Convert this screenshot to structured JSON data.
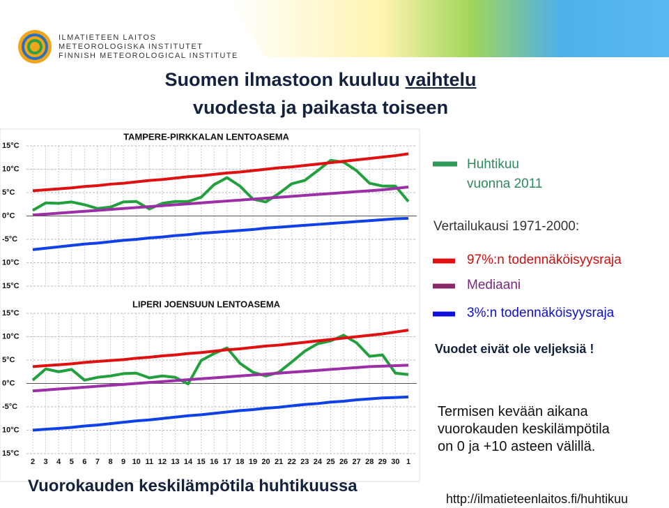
{
  "logo": {
    "lines": [
      "ILMATIETEEN LAITOS",
      "METEOROLOGISKA INSTITUTET",
      "FINNISH METEOROLOGICAL INSTITUTE"
    ]
  },
  "header": {
    "title_start": "Suomen ilmastoon kuuluu",
    "title_underlined": "vaihtelu",
    "title_line2": "vuodesta ja paikasta toiseen"
  },
  "chart_data": [
    {
      "type": "line",
      "title": "TAMPERE-PIRKKALAN LENTOASEMA",
      "ylim": [
        -15,
        15
      ],
      "yticks": [
        {
          "value": 15,
          "label": "15°C"
        },
        {
          "value": 10,
          "label": "10°C"
        },
        {
          "value": 5,
          "label": "5°C"
        },
        {
          "value": 0,
          "label": "0°C"
        },
        {
          "value": -5,
          "label": "-5°C"
        },
        {
          "value": -10,
          "label": "10°C"
        },
        {
          "value": -15,
          "label": "15°C"
        }
      ],
      "grid": true,
      "series": [
        {
          "name": "Huhtikuu vuonna 2011",
          "color": "#23a03e",
          "values": [
            1.2,
            2.8,
            2.7,
            3.0,
            2.4,
            1.6,
            1.9,
            3.0,
            3.1,
            1.5,
            2.7,
            3.1,
            3.1,
            4.0,
            6.7,
            8.2,
            6.4,
            3.6,
            3.0,
            4.8,
            6.9,
            7.6,
            9.7,
            11.9,
            11.5,
            9.7,
            7.0,
            6.4,
            6.4,
            3.1
          ]
        },
        {
          "name": "97%:n todennäköisyysraja",
          "color": "#e01010",
          "values": [
            5.4,
            5.6,
            5.8,
            6.0,
            6.3,
            6.5,
            6.8,
            7.0,
            7.3,
            7.6,
            7.8,
            8.1,
            8.4,
            8.6,
            8.9,
            9.2,
            9.4,
            9.7,
            10.0,
            10.3,
            10.5,
            10.8,
            11.1,
            11.4,
            11.7,
            12.0,
            12.3,
            12.6,
            12.9,
            13.3
          ]
        },
        {
          "name": "Mediaani",
          "color": "#9a2fa6",
          "values": [
            0.2,
            0.4,
            0.6,
            0.8,
            1.0,
            1.2,
            1.4,
            1.6,
            1.8,
            2.0,
            2.2,
            2.4,
            2.6,
            2.8,
            3.0,
            3.2,
            3.4,
            3.6,
            3.8,
            4.0,
            4.2,
            4.4,
            4.6,
            4.8,
            5.0,
            5.2,
            5.4,
            5.6,
            5.9,
            6.2
          ]
        },
        {
          "name": "3%:n todennäköisyysraja",
          "color": "#1040e8",
          "values": [
            -7.2,
            -6.9,
            -6.6,
            -6.3,
            -6.0,
            -5.8,
            -5.5,
            -5.2,
            -5.0,
            -4.7,
            -4.5,
            -4.2,
            -4.0,
            -3.7,
            -3.5,
            -3.3,
            -3.1,
            -2.9,
            -2.6,
            -2.4,
            -2.2,
            -2.0,
            -1.8,
            -1.6,
            -1.4,
            -1.2,
            -1.0,
            -0.8,
            -0.6,
            -0.5
          ]
        }
      ]
    },
    {
      "type": "line",
      "title": "LIPERI JOENSUUN LENTOASEMA",
      "categories": [
        "2",
        "3",
        "4",
        "5",
        "6",
        "7",
        "8",
        "9",
        "10",
        "11",
        "12",
        "13",
        "14",
        "15",
        "16",
        "17",
        "18",
        "19",
        "20",
        "21",
        "22",
        "23",
        "24",
        "25",
        "26",
        "27",
        "28",
        "29",
        "30",
        "1"
      ],
      "ylim": [
        -15,
        15
      ],
      "yticks": [
        {
          "value": 15,
          "label": "15°C"
        },
        {
          "value": 10,
          "label": "10°C"
        },
        {
          "value": 5,
          "label": "5°C"
        },
        {
          "value": 0,
          "label": "0°C"
        },
        {
          "value": -5,
          "label": "-5°C"
        },
        {
          "value": -10,
          "label": "10°C"
        },
        {
          "value": -15,
          "label": "15°C"
        }
      ],
      "grid": true,
      "series": [
        {
          "color": "#23a03e",
          "values": [
            0.7,
            3.1,
            2.5,
            3.0,
            0.7,
            1.3,
            1.6,
            2.1,
            2.2,
            1.2,
            1.6,
            1.3,
            -0.1,
            4.9,
            6.4,
            7.6,
            4.3,
            2.4,
            1.6,
            2.4,
            4.6,
            6.9,
            8.5,
            9.1,
            10.3,
            8.7,
            5.8,
            6.1,
            2.2,
            1.9
          ]
        },
        {
          "color": "#e01010",
          "values": [
            3.6,
            3.8,
            4.0,
            4.2,
            4.5,
            4.7,
            4.9,
            5.1,
            5.4,
            5.6,
            5.9,
            6.1,
            6.4,
            6.6,
            6.9,
            7.2,
            7.4,
            7.7,
            8.0,
            8.2,
            8.5,
            8.8,
            9.1,
            9.4,
            9.7,
            10.0,
            10.3,
            10.6,
            11.0,
            11.4
          ]
        },
        {
          "color": "#9a2fa6",
          "values": [
            -1.6,
            -1.4,
            -1.2,
            -1.0,
            -0.8,
            -0.6,
            -0.4,
            -0.2,
            0.0,
            0.2,
            0.4,
            0.6,
            0.8,
            1.0,
            1.2,
            1.4,
            1.6,
            1.8,
            2.0,
            2.2,
            2.4,
            2.6,
            2.8,
            3.0,
            3.2,
            3.4,
            3.6,
            3.7,
            3.8,
            3.9
          ]
        },
        {
          "color": "#1040e8",
          "values": [
            -10.0,
            -9.8,
            -9.6,
            -9.4,
            -9.1,
            -8.9,
            -8.6,
            -8.3,
            -8.0,
            -7.8,
            -7.5,
            -7.2,
            -6.9,
            -6.7,
            -6.4,
            -6.1,
            -5.8,
            -5.6,
            -5.3,
            -5.1,
            -4.8,
            -4.5,
            -4.3,
            -4.0,
            -3.8,
            -3.5,
            -3.3,
            -3.1,
            -3.0,
            -2.9
          ]
        }
      ]
    }
  ],
  "legend": {
    "reference_period": "Vertailukausi 1971-2000:"
  },
  "remark": "Vuodet eivät ole veljeksiä !",
  "note": {
    "lines": [
      "Termisen kevään aikana",
      "vuorokauden keskilämpötila",
      "on 0 ja +10 asteen välillä."
    ]
  },
  "caption": "Vuorokauden keskilämpötila huhtikuussa",
  "url": "http://ilmatieteenlaitos.fi/huhtikuu"
}
